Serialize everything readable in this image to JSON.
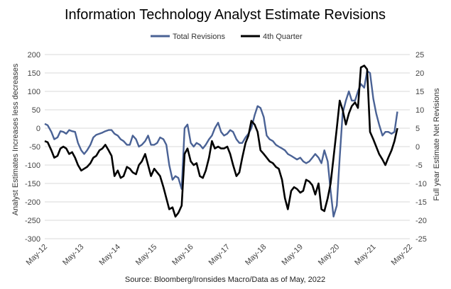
{
  "chart_data": {
    "type": "line",
    "title": "Information Technology Analyst Estimate Revisions",
    "source": "Source: Bloomberg/Ironsides Macro/Data as of May, 2022",
    "ylabel_left": "Analyst Estimates Increases less decreases",
    "ylabel_right": "Full year Estimate Net Revisions",
    "ylim_left": [
      -300,
      200
    ],
    "ylim_right": [
      -25,
      25
    ],
    "yticks_left": [
      "200",
      "150",
      "100",
      "50",
      "0",
      "-50",
      "-100",
      "-150",
      "-200",
      "-250",
      "-300"
    ],
    "yticks_right": [
      "25",
      "20",
      "15",
      "10",
      "5",
      "0",
      "-5",
      "-10",
      "-15",
      "-20",
      "-25"
    ],
    "xticks": [
      "May-12",
      "May-13",
      "May-14",
      "May-15",
      "May-16",
      "May-17",
      "May-18",
      "May-19",
      "May-20",
      "May-21",
      "May-22"
    ],
    "grid": "horizontal",
    "legend_position": "top",
    "series": [
      {
        "name": "Total Revisions",
        "axis": "left",
        "color": "#4a6295",
        "x": [
          2012.37,
          2012.45,
          2012.55,
          2012.63,
          2012.72,
          2012.8,
          2012.88,
          2012.96,
          2013.04,
          2013.12,
          2013.2,
          2013.28,
          2013.37,
          2013.45,
          2013.53,
          2013.62,
          2013.7,
          2013.78,
          2013.87,
          2013.95,
          2014.03,
          2014.12,
          2014.2,
          2014.28,
          2014.37,
          2014.45,
          2014.53,
          2014.62,
          2014.7,
          2014.78,
          2014.87,
          2014.95,
          2015.03,
          2015.12,
          2015.2,
          2015.28,
          2015.37,
          2015.45,
          2015.53,
          2015.62,
          2015.7,
          2015.78,
          2015.87,
          2015.95,
          2016.03,
          2016.12,
          2016.2,
          2016.28,
          2016.37,
          2016.45,
          2016.53,
          2016.62,
          2016.7,
          2016.78,
          2016.87,
          2016.95,
          2017.03,
          2017.12,
          2017.2,
          2017.28,
          2017.37,
          2017.45,
          2017.53,
          2017.62,
          2017.7,
          2017.78,
          2017.87,
          2017.95,
          2018.03,
          2018.12,
          2018.2,
          2018.28,
          2018.37,
          2018.45,
          2018.53,
          2018.62,
          2018.7,
          2018.78,
          2018.87,
          2018.95,
          2019.03,
          2019.12,
          2019.2,
          2019.28,
          2019.37,
          2019.45,
          2019.53,
          2019.62,
          2019.7,
          2019.78,
          2019.87,
          2019.95,
          2020.03,
          2020.12,
          2020.2,
          2020.28,
          2020.37,
          2020.45,
          2020.53,
          2020.62,
          2020.7,
          2020.78,
          2020.87,
          2020.95,
          2021.03,
          2021.12,
          2021.2,
          2021.28,
          2021.37,
          2021.45,
          2021.53,
          2021.62,
          2021.7,
          2021.78,
          2021.87,
          2021.95,
          2022.03,
          2022.12,
          2022.2,
          2022.28,
          2022.37
        ],
        "values": [
          12,
          8,
          -10,
          -30,
          -25,
          -8,
          -10,
          -15,
          -5,
          -8,
          -10,
          -40,
          -60,
          -70,
          -60,
          -45,
          -25,
          -18,
          -15,
          -12,
          -8,
          -5,
          -5,
          -15,
          -20,
          -30,
          -35,
          -45,
          -45,
          -20,
          -30,
          -50,
          -45,
          -35,
          -20,
          -45,
          -45,
          -40,
          -25,
          -30,
          -45,
          -100,
          -140,
          -130,
          -135,
          -165,
          0,
          10,
          -40,
          -50,
          -40,
          -45,
          -55,
          -45,
          -30,
          -20,
          0,
          15,
          -10,
          -20,
          -15,
          -5,
          -10,
          -30,
          -40,
          -40,
          -25,
          -15,
          0,
          35,
          60,
          55,
          30,
          -20,
          -30,
          -35,
          -45,
          -50,
          -55,
          -60,
          -70,
          -75,
          -80,
          -85,
          -80,
          -90,
          -95,
          -90,
          -80,
          -70,
          -80,
          -95,
          -60,
          -90,
          -170,
          -240,
          -210,
          -80,
          40,
          75,
          100,
          75,
          75,
          100,
          120,
          110,
          155,
          150,
          80,
          40,
          10,
          -20,
          -10,
          -10,
          -15,
          -10,
          45,
          null,
          null,
          null,
          null
        ],
        "visible_points": 117
      },
      {
        "name": "4th Quarter",
        "axis": "right",
        "color": "#000000",
        "x": [
          2012.37,
          2012.45,
          2012.55,
          2012.63,
          2012.72,
          2012.8,
          2012.88,
          2012.96,
          2013.04,
          2013.12,
          2013.2,
          2013.28,
          2013.37,
          2013.45,
          2013.53,
          2013.62,
          2013.7,
          2013.78,
          2013.87,
          2013.95,
          2014.03,
          2014.12,
          2014.2,
          2014.28,
          2014.37,
          2014.45,
          2014.53,
          2014.62,
          2014.7,
          2014.78,
          2014.87,
          2014.95,
          2015.03,
          2015.12,
          2015.2,
          2015.28,
          2015.37,
          2015.45,
          2015.53,
          2015.62,
          2015.7,
          2015.78,
          2015.87,
          2015.95,
          2016.03,
          2016.12,
          2016.2,
          2016.28,
          2016.37,
          2016.45,
          2016.53,
          2016.62,
          2016.7,
          2016.78,
          2016.87,
          2016.95,
          2017.03,
          2017.12,
          2017.2,
          2017.28,
          2017.37,
          2017.45,
          2017.53,
          2017.62,
          2017.7,
          2017.78,
          2017.87,
          2017.95,
          2018.03,
          2018.12,
          2018.2,
          2018.28,
          2018.37,
          2018.45,
          2018.53,
          2018.62,
          2018.7,
          2018.78,
          2018.87,
          2018.95,
          2019.03,
          2019.12,
          2019.2,
          2019.28,
          2019.37,
          2019.45,
          2019.53,
          2019.62,
          2019.7,
          2019.78,
          2019.87,
          2019.95,
          2020.03,
          2020.12,
          2020.2,
          2020.28,
          2020.37,
          2020.45,
          2020.53,
          2020.62,
          2020.7,
          2020.78,
          2020.87,
          2020.95,
          2021.03,
          2021.12,
          2021.2,
          2021.28,
          2021.37,
          2021.45,
          2021.53,
          2021.62,
          2021.7,
          2021.78,
          2021.87,
          2021.95,
          2022.03,
          2022.12,
          2022.2,
          2022.28,
          2022.37
        ],
        "values": [
          1.5,
          1.2,
          -1,
          -3,
          -2.5,
          -0.5,
          0,
          -0.5,
          -2,
          -1.5,
          -3,
          -5,
          -6.5,
          -6,
          -5.5,
          -4.5,
          -3,
          -2.5,
          -1,
          -0.5,
          0.5,
          -1,
          -2.5,
          -8,
          -6.5,
          -8.5,
          -8,
          -5.5,
          -6,
          -7,
          -7.5,
          -5,
          -4,
          -2,
          -5,
          -8,
          -6,
          -7,
          -8,
          -11,
          -14,
          -17,
          -16.5,
          -19,
          -18,
          -16,
          -2,
          -0.5,
          -4,
          -5,
          -4.5,
          -8,
          -8.5,
          -6.5,
          -3,
          1.5,
          -0.5,
          0,
          -0.5,
          -0.5,
          0,
          -2,
          -5,
          -8,
          -7,
          -3,
          1,
          3,
          7,
          6,
          4,
          -1,
          -2,
          -3,
          -4,
          -4.5,
          -5.5,
          -6,
          -9,
          -14,
          -17,
          -12,
          -11,
          -11.5,
          -12.5,
          -12,
          -9,
          -9.5,
          -10.5,
          -13,
          -10,
          -17,
          -17.5,
          -14,
          -10,
          -3,
          5,
          12.5,
          10,
          6,
          9,
          11,
          12,
          10.5,
          21.5,
          22,
          21,
          4,
          2,
          0,
          -2,
          -3.5,
          -5,
          -3,
          -1,
          1.5,
          5,
          null,
          null,
          null,
          null
        ],
        "visible_points": 117
      }
    ]
  }
}
